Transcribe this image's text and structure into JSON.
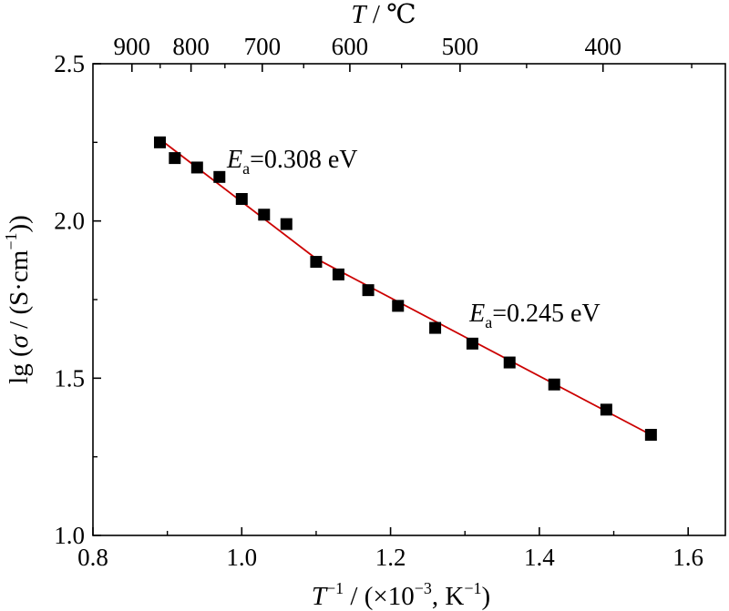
{
  "chart_data": {
    "type": "scatter",
    "x_axis": {
      "label_main": "T",
      "label_sup1": "−1",
      "label_mid": " / (×10",
      "label_sup2": "−3",
      "label_end": ", K",
      "label_sup3": "−1",
      "label_close": ")",
      "range": [
        0.8,
        1.65
      ],
      "ticks": [
        "0.8",
        "1.0",
        "1.2",
        "1.4",
        "1.6"
      ]
    },
    "y_axis": {
      "label_prefix": "lg (",
      "label_sigma": "σ",
      "label_mid": " / (S·cm",
      "label_sup": "−1",
      "label_close": "))",
      "range": [
        1.0,
        2.5
      ],
      "ticks": [
        "1.0",
        "1.5",
        "2.0",
        "2.5"
      ]
    },
    "top_axis": {
      "label_main": "T",
      "label_unit": " / ℃",
      "ticks": [
        {
          "label": "900",
          "celsius": 900
        },
        {
          "label": "800",
          "celsius": 800
        },
        {
          "label": "700",
          "celsius": 700
        },
        {
          "label": "600",
          "celsius": 600
        },
        {
          "label": "500",
          "celsius": 500
        },
        {
          "label": "400",
          "celsius": 400
        }
      ]
    },
    "series": [
      {
        "marker": "square",
        "color": "#000000",
        "x": [
          0.89,
          0.91,
          0.94,
          0.97,
          1.0,
          1.03,
          1.06,
          1.1,
          1.13,
          1.17,
          1.21,
          1.26,
          1.31,
          1.36,
          1.42,
          1.49,
          1.55
        ],
        "y": [
          2.25,
          2.2,
          2.17,
          2.14,
          2.07,
          2.02,
          1.99,
          1.87,
          1.83,
          1.78,
          1.73,
          1.66,
          1.61,
          1.55,
          1.48,
          1.4,
          1.32
        ]
      }
    ],
    "fit_lines": [
      {
        "color": "#cc0000",
        "x": [
          0.89,
          1.1
        ],
        "y": [
          2.26,
          1.88
        ]
      },
      {
        "color": "#cc0000",
        "x": [
          1.1,
          1.55
        ],
        "y": [
          1.88,
          1.32
        ]
      }
    ],
    "annotations": [
      {
        "main": "E",
        "sub": "a",
        "value": "=0.308 eV",
        "x": 0.98,
        "y": 2.17
      },
      {
        "main": "E",
        "sub": "a",
        "value": "=0.245 eV",
        "x": 1.306,
        "y": 1.68
      }
    ],
    "grid": false,
    "legend": "none"
  }
}
